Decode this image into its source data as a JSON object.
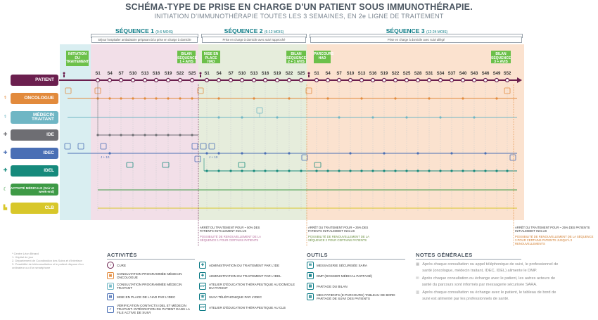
{
  "header": {
    "title": "SCHÉMA-TYPE DE PRISE EN CHARGE D'UN PATIENT SOUS IMMUNOTHÉRAPIE.",
    "subtitle": "INITIATION D'IMMUNOTHÉRAPIE TOUTES LES 3 SEMAINES, EN 2e LIGNE DE TRAITEMENT"
  },
  "sequences": [
    {
      "label": "SÉQUENCE 1",
      "sub": "(0-6 MOIS)",
      "phase": "Séjour hospitalier ambulatoire préparant à la prise en charge à domicile"
    },
    {
      "label": "SÉQUENCE 2",
      "sub": "(6-12 MOIS)",
      "phase": "Prise en charge à domicile avec suivi rapproché"
    },
    {
      "label": "SÉQUENCE 3",
      "sub": "(12-24 MOIS)",
      "phase": "Prise en charge à domicile avec suivi allégé"
    }
  ],
  "markers": {
    "initiation": "INITIATION DU TRAITEMENT",
    "bilan1": "BILAN SÉQUENCE 1 + AVIS",
    "mise_place": "MISE EN PLACE HAD",
    "bilan2": "BILAN SÉQUENCE 2 + 1 AVIS",
    "parcours": "PARCOURS HAD",
    "bilan3": "BILAN SÉQUENCE 3 + AVIS"
  },
  "weeks": {
    "seq1": [
      "S1",
      "S4",
      "S7",
      "S10",
      "S13",
      "S16",
      "S19",
      "S22",
      "S25"
    ],
    "seq2": [
      "S1",
      "S4",
      "S7",
      "S10",
      "S13",
      "S16",
      "S19",
      "S22",
      "S25"
    ],
    "seq3": [
      "S1",
      "S4",
      "S7",
      "S10",
      "S13",
      "S16",
      "S19",
      "S22",
      "S25",
      "S28",
      "S31",
      "S34",
      "S37",
      "S40",
      "S43",
      "S46",
      "S49",
      "S52"
    ]
  },
  "actors": [
    {
      "label": "PATIENT",
      "color": "#6b1f4e",
      "icon": "user-icon"
    },
    {
      "label": "ONCOLOGUE",
      "color": "#e28a3c",
      "icon": "doctor-icon"
    },
    {
      "label": "MÉDECIN TRAITANT",
      "color": "#6fb6c4",
      "icon": "doctor-icon"
    },
    {
      "label": "IDE",
      "color": "#6e6e73",
      "icon": "nurse-icon"
    },
    {
      "label": "IDEC",
      "color": "#4a6fb5",
      "icon": "nurse-icon"
    },
    {
      "label": "IDEL",
      "color": "#168a7c",
      "icon": "nurse-icon"
    },
    {
      "label": "ACTIVITÉ MÉDICALE (Soir et week-end)",
      "color": "#3e9a46",
      "icon": "moon-icon"
    },
    {
      "label": "CLB",
      "color": "#d8c72a",
      "icon": "building-icon"
    }
  ],
  "pending": {
    "j10_a": "J + 10",
    "j10_b": "J + 10"
  },
  "stop_notes": [
    {
      "main": "ARRÊT DU TRAITEMENT POUR ~ 50% DES PATIENTS INITIALEMENT INCLUS",
      "sub": "POSSIBILITÉ DE RENOUVELLEMENT DE LA SÉQUENCE 1 POUR CERTAINS PATIENTS"
    },
    {
      "main": "ARRÊT DU TRAITEMENT POUR ~ 25% DES PATIENTS INITIALEMENT INCLUS",
      "sub": "POSSIBILITÉ DE RENOUVELLEMENT DE LA SÉQUENCE 2 POUR CERTAINS PATIENTS"
    },
    {
      "main": "ARRÊT DU TRAITEMENT POUR ~ 25% DES PATIENTS INITIALEMENT INCLUS",
      "sub": "POSSIBILITÉ DE RENOUVELLEMENT DE LA SÉQUENCE 3 POUR CERTAINS PATIENTS JUSQU'À 3 RENOUVELLEMENTS"
    }
  ],
  "footnotes": [
    "* Centre Léon Bérard",
    "1. Hôpital de jour",
    "2. Département de Coordination des Soins et d'Interface",
    "3. Possibilité de téléconsultation si le patient dispose d'un ordinateur ou d'un smartphone"
  ],
  "legend": {
    "activities_title": "ACTIVITÉS",
    "activities_col1": [
      {
        "icon": "○",
        "text": "CURE"
      },
      {
        "icon": "▣",
        "text": "CONSULTATION PROGRAMMÉE MÉDECIN ONCOLOGUE"
      },
      {
        "icon": "▣",
        "text": "CONSULTATION PROGRAMMÉE MÉDECIN TRAITANT"
      },
      {
        "icon": "▤",
        "text": "MISE EN PLACE DE L'HAD PAR L'IDEC"
      },
      {
        "icon": "✓",
        "text": "VÉRIFICATION CONTACTS IDEL ET MÉDECIN TRAITANT. INTÉGRATION DU PATIENT DANS LA FILE ACTIVE DE SUIVI"
      }
    ],
    "activities_col2": [
      {
        "icon": "✚",
        "text": "ADMINISTRATION DU TRAITEMENT PAR L'IDE"
      },
      {
        "icon": "✚",
        "text": "ADMINISTRATION DU TRAITEMENT PAR L'IDEL"
      },
      {
        "icon": "ETP",
        "text": "ATELIER D'ÉDUCATION THÉRAPEUTIQUE AU DOMICILE DU PATIENT"
      },
      {
        "icon": "☏",
        "text": "SUIVI TÉLÉPHONIQUE PAR L'IDEC"
      },
      {
        "icon": "ETP",
        "text": "ATELIER D'ÉDUCATION THÉRAPEUTIQUE AU CLB"
      }
    ],
    "tools_title": "OUTILS",
    "tools": [
      {
        "icon": "✉",
        "text": "MESSAGERIE SÉCURISÉE SARA"
      },
      {
        "icon": "▦",
        "text": "DMP (DOSSIER MÉDICAL PARTAGÉ)"
      },
      {
        "icon": "▤",
        "text": "PARTAGE DU BILAN"
      },
      {
        "icon": "▥",
        "text": "MES PATIENTS (E-PARCOURS) TABLEAU DE BORD PARTAGÉ DE SUIVI DES PATIENTS"
      }
    ],
    "notes_title": "NOTES GÉNÉRALES",
    "notes": [
      "Après chaque consultation ou appel téléphonique de suivi, le professionnel de santé (oncologue, médecin traitant, IDEC, IDEL) alimente le DMP.",
      "Après chaque consultation ou échange avec le patient, les autres acteurs de santé du parcours sont informés par messagerie sécurisée SARA.",
      "Après chaque consultation ou échange avec le patient, le tableau de bord de suivi est alimenté par les professionnels de santé."
    ]
  }
}
